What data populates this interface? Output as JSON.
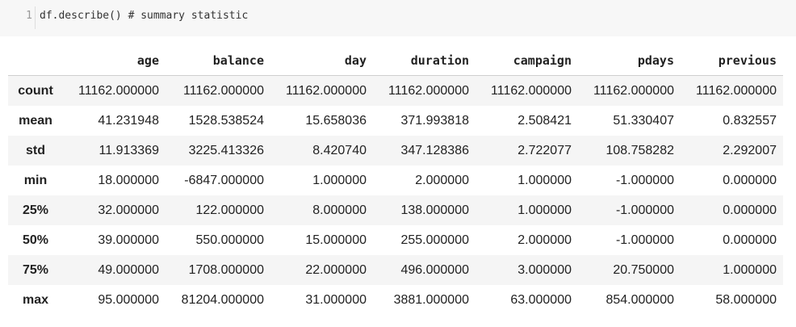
{
  "code_cell": {
    "line_number": "1",
    "code": "df.describe() # summary statistic"
  },
  "table": {
    "columns": [
      "age",
      "balance",
      "day",
      "duration",
      "campaign",
      "pdays",
      "previous"
    ],
    "rows": [
      {
        "label": "count",
        "values": [
          "11162.000000",
          "11162.000000",
          "11162.000000",
          "11162.000000",
          "11162.000000",
          "11162.000000",
          "11162.000000"
        ]
      },
      {
        "label": "mean",
        "values": [
          "41.231948",
          "1528.538524",
          "15.658036",
          "371.993818",
          "2.508421",
          "51.330407",
          "0.832557"
        ]
      },
      {
        "label": "std",
        "values": [
          "11.913369",
          "3225.413326",
          "8.420740",
          "347.128386",
          "2.722077",
          "108.758282",
          "2.292007"
        ]
      },
      {
        "label": "min",
        "values": [
          "18.000000",
          "-6847.000000",
          "1.000000",
          "2.000000",
          "1.000000",
          "-1.000000",
          "0.000000"
        ]
      },
      {
        "label": "25%",
        "values": [
          "32.000000",
          "122.000000",
          "8.000000",
          "138.000000",
          "1.000000",
          "-1.000000",
          "0.000000"
        ]
      },
      {
        "label": "50%",
        "values": [
          "39.000000",
          "550.000000",
          "15.000000",
          "255.000000",
          "2.000000",
          "-1.000000",
          "0.000000"
        ]
      },
      {
        "label": "75%",
        "values": [
          "49.000000",
          "1708.000000",
          "22.000000",
          "496.000000",
          "3.000000",
          "20.750000",
          "1.000000"
        ]
      },
      {
        "label": "max",
        "values": [
          "95.000000",
          "81204.000000",
          "31.000000",
          "3881.000000",
          "63.000000",
          "854.000000",
          "58.000000"
        ]
      }
    ]
  }
}
